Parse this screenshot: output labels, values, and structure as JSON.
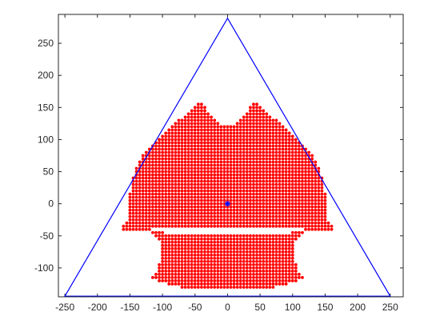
{
  "chart_data": {
    "type": "scatter",
    "xlim": [
      -260,
      270
    ],
    "ylim": [
      -145,
      295
    ],
    "xticks": [
      -250,
      -200,
      -150,
      -100,
      -50,
      0,
      50,
      100,
      150,
      200,
      250
    ],
    "yticks": [
      -100,
      -50,
      0,
      50,
      100,
      150,
      200,
      250
    ],
    "grid": false,
    "boundary": {
      "shape": "triangle",
      "color": "#0000ff",
      "vertices": [
        [
          -250,
          -144
        ],
        [
          0,
          289
        ],
        [
          250,
          -144
        ]
      ]
    },
    "center_marker": {
      "x": 0,
      "y": 0,
      "symbol": "*",
      "color": "#0000ff"
    },
    "point_cloud": {
      "color": "#ff0000",
      "grid_spacing": 5,
      "y_range": [
        -130,
        155
      ],
      "rows": [
        {
          "y": 155,
          "segments": [
            [
              -45,
              -40
            ],
            [
              40,
              45
            ]
          ]
        },
        {
          "y": 150,
          "segments": [
            [
              -50,
              -35
            ],
            [
              35,
              50
            ]
          ]
        },
        {
          "y": 145,
          "segments": [
            [
              -55,
              -35
            ],
            [
              35,
              55
            ]
          ]
        },
        {
          "y": 140,
          "segments": [
            [
              -60,
              -30
            ],
            [
              30,
              60
            ]
          ]
        },
        {
          "y": 135,
          "segments": [
            [
              -65,
              -25
            ],
            [
              25,
              65
            ]
          ]
        },
        {
          "y": 130,
          "segments": [
            [
              -75,
              -20
            ],
            [
              20,
              75
            ]
          ]
        },
        {
          "y": 125,
          "segments": [
            [
              -80,
              -15
            ],
            [
              15,
              80
            ]
          ]
        },
        {
          "y": 120,
          "segments": [
            [
              -85,
              85
            ]
          ]
        },
        {
          "y": 115,
          "segments": [
            [
              -90,
              90
            ]
          ]
        },
        {
          "y": 110,
          "segments": [
            [
              -95,
              95
            ]
          ]
        },
        {
          "y": 105,
          "segments": [
            [
              -100,
              100
            ]
          ]
        },
        {
          "y": 100,
          "segments": [
            [
              -105,
              105
            ]
          ]
        },
        {
          "y": 95,
          "segments": [
            [
              -110,
              110
            ]
          ]
        },
        {
          "y": 90,
          "segments": [
            [
              -115,
              115
            ]
          ]
        },
        {
          "y": 85,
          "segments": [
            [
              -120,
              120
            ]
          ]
        },
        {
          "y": 80,
          "segments": [
            [
              -125,
              125
            ]
          ]
        },
        {
          "y": 75,
          "segments": [
            [
              -130,
              130
            ]
          ]
        },
        {
          "y": 70,
          "segments": [
            [
              -130,
              130
            ]
          ]
        },
        {
          "y": 65,
          "segments": [
            [
              -135,
              135
            ]
          ]
        },
        {
          "y": 60,
          "segments": [
            [
              -135,
              135
            ]
          ]
        },
        {
          "y": 55,
          "segments": [
            [
              -140,
              140
            ]
          ]
        },
        {
          "y": 50,
          "segments": [
            [
              -140,
              140
            ]
          ]
        },
        {
          "y": 45,
          "segments": [
            [
              -140,
              140
            ]
          ]
        },
        {
          "y": 40,
          "segments": [
            [
              -145,
              145
            ]
          ]
        },
        {
          "y": 35,
          "segments": [
            [
              -145,
              145
            ]
          ]
        },
        {
          "y": 30,
          "segments": [
            [
              -145,
              145
            ]
          ]
        },
        {
          "y": 25,
          "segments": [
            [
              -145,
              145
            ]
          ]
        },
        {
          "y": 20,
          "segments": [
            [
              -145,
              145
            ]
          ]
        },
        {
          "y": 15,
          "segments": [
            [
              -150,
              150
            ]
          ]
        },
        {
          "y": 10,
          "segments": [
            [
              -150,
              150
            ]
          ]
        },
        {
          "y": 5,
          "segments": [
            [
              -150,
              150
            ]
          ]
        },
        {
          "y": 0,
          "segments": [
            [
              -150,
              150
            ]
          ]
        },
        {
          "y": -5,
          "segments": [
            [
              -150,
              150
            ]
          ]
        },
        {
          "y": -10,
          "segments": [
            [
              -150,
              150
            ]
          ]
        },
        {
          "y": -15,
          "segments": [
            [
              -150,
              150
            ]
          ]
        },
        {
          "y": -20,
          "segments": [
            [
              -150,
              150
            ]
          ]
        },
        {
          "y": -25,
          "segments": [
            [
              -150,
              150
            ]
          ]
        },
        {
          "y": -30,
          "segments": [
            [
              -155,
              155
            ]
          ]
        },
        {
          "y": -35,
          "segments": [
            [
              -160,
              160
            ]
          ]
        },
        {
          "y": -40,
          "segments": [
            [
              -160,
              -120
            ],
            [
              120,
              160
            ]
          ]
        },
        {
          "y": -45,
          "segments": [
            [
              -115,
              -100
            ],
            [
              100,
              115
            ]
          ]
        },
        {
          "y": -50,
          "segments": [
            [
              -110,
              110
            ]
          ]
        },
        {
          "y": -55,
          "segments": [
            [
              -105,
              105
            ]
          ]
        },
        {
          "y": -60,
          "segments": [
            [
              -100,
              100
            ]
          ]
        },
        {
          "y": -65,
          "segments": [
            [
              -100,
              100
            ]
          ]
        },
        {
          "y": -70,
          "segments": [
            [
              -100,
              100
            ]
          ]
        },
        {
          "y": -75,
          "segments": [
            [
              -100,
              100
            ]
          ]
        },
        {
          "y": -80,
          "segments": [
            [
              -100,
              100
            ]
          ]
        },
        {
          "y": -85,
          "segments": [
            [
              -100,
              100
            ]
          ]
        },
        {
          "y": -90,
          "segments": [
            [
              -100,
              100
            ]
          ]
        },
        {
          "y": -95,
          "segments": [
            [
              -105,
              105
            ]
          ]
        },
        {
          "y": -100,
          "segments": [
            [
              -105,
              105
            ]
          ]
        },
        {
          "y": -105,
          "segments": [
            [
              -105,
              105
            ]
          ]
        },
        {
          "y": -110,
          "segments": [
            [
              -110,
              110
            ]
          ]
        },
        {
          "y": -115,
          "segments": [
            [
              -115,
              115
            ]
          ]
        },
        {
          "y": -120,
          "segments": [
            [
              -105,
              105
            ]
          ]
        },
        {
          "y": -125,
          "segments": [
            [
              -90,
              90
            ]
          ]
        },
        {
          "y": -130,
          "segments": [
            [
              -70,
              70
            ]
          ]
        }
      ]
    },
    "title": "",
    "xlabel": "",
    "ylabel": ""
  }
}
